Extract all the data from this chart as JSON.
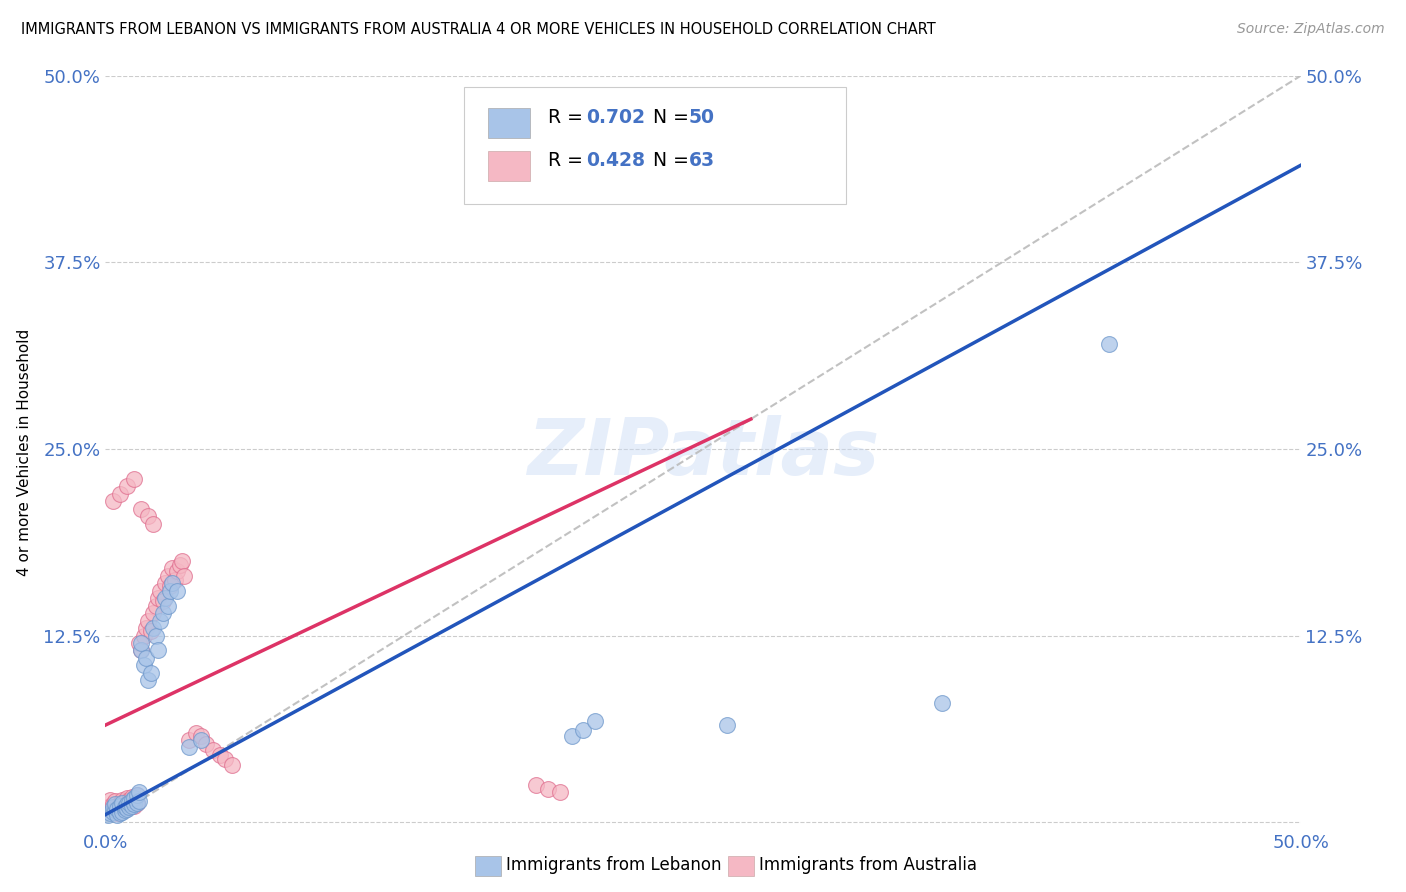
{
  "title": "IMMIGRANTS FROM LEBANON VS IMMIGRANTS FROM AUSTRALIA 4 OR MORE VEHICLES IN HOUSEHOLD CORRELATION CHART",
  "source": "Source: ZipAtlas.com",
  "ylabel": "4 or more Vehicles in Household",
  "xlim": [
    0.0,
    0.5
  ],
  "ylim": [
    -0.005,
    0.5
  ],
  "legend_blue_R": "0.702",
  "legend_blue_N": "50",
  "legend_pink_R": "0.428",
  "legend_pink_N": "63",
  "blue_color": "#a8c4e8",
  "pink_color": "#f5b8c4",
  "blue_edge_color": "#7099cc",
  "pink_edge_color": "#e07090",
  "blue_line_color": "#2255bb",
  "pink_line_color": "#dd3366",
  "diagonal_color": "#bbbbbb",
  "watermark": "ZIPatlas",
  "blue_line_x0": 0.0,
  "blue_line_y0": 0.005,
  "blue_line_x1": 0.5,
  "blue_line_y1": 0.44,
  "pink_line_x0": 0.0,
  "pink_line_y0": 0.065,
  "pink_line_x1": 0.27,
  "pink_line_y1": 0.27,
  "blue_scatter_x": [
    0.001,
    0.002,
    0.003,
    0.003,
    0.004,
    0.004,
    0.005,
    0.005,
    0.006,
    0.006,
    0.007,
    0.007,
    0.008,
    0.008,
    0.009,
    0.009,
    0.01,
    0.01,
    0.011,
    0.011,
    0.012,
    0.012,
    0.013,
    0.013,
    0.014,
    0.014,
    0.015,
    0.015,
    0.016,
    0.017,
    0.018,
    0.019,
    0.02,
    0.021,
    0.022,
    0.023,
    0.024,
    0.025,
    0.026,
    0.027,
    0.028,
    0.03,
    0.035,
    0.04,
    0.195,
    0.2,
    0.205,
    0.26,
    0.35,
    0.42
  ],
  "blue_scatter_y": [
    0.005,
    0.006,
    0.007,
    0.01,
    0.008,
    0.012,
    0.005,
    0.009,
    0.006,
    0.011,
    0.007,
    0.013,
    0.008,
    0.01,
    0.009,
    0.012,
    0.01,
    0.013,
    0.011,
    0.015,
    0.012,
    0.016,
    0.013,
    0.018,
    0.014,
    0.02,
    0.115,
    0.12,
    0.105,
    0.11,
    0.095,
    0.1,
    0.13,
    0.125,
    0.115,
    0.135,
    0.14,
    0.15,
    0.145,
    0.155,
    0.16,
    0.155,
    0.05,
    0.055,
    0.058,
    0.062,
    0.068,
    0.065,
    0.08,
    0.32
  ],
  "pink_scatter_x": [
    0.001,
    0.002,
    0.002,
    0.003,
    0.003,
    0.004,
    0.004,
    0.005,
    0.005,
    0.006,
    0.006,
    0.007,
    0.007,
    0.008,
    0.008,
    0.009,
    0.009,
    0.01,
    0.01,
    0.011,
    0.011,
    0.012,
    0.012,
    0.013,
    0.013,
    0.014,
    0.015,
    0.016,
    0.017,
    0.018,
    0.019,
    0.02,
    0.021,
    0.022,
    0.023,
    0.024,
    0.025,
    0.026,
    0.027,
    0.028,
    0.029,
    0.03,
    0.031,
    0.032,
    0.033,
    0.035,
    0.038,
    0.04,
    0.042,
    0.045,
    0.048,
    0.05,
    0.053,
    0.18,
    0.185,
    0.19,
    0.003,
    0.006,
    0.009,
    0.012,
    0.015,
    0.018,
    0.02
  ],
  "pink_scatter_y": [
    0.01,
    0.008,
    0.015,
    0.007,
    0.012,
    0.009,
    0.014,
    0.006,
    0.011,
    0.008,
    0.013,
    0.01,
    0.015,
    0.009,
    0.014,
    0.011,
    0.016,
    0.01,
    0.015,
    0.012,
    0.017,
    0.011,
    0.016,
    0.013,
    0.018,
    0.12,
    0.115,
    0.125,
    0.13,
    0.135,
    0.128,
    0.14,
    0.145,
    0.15,
    0.155,
    0.148,
    0.16,
    0.165,
    0.158,
    0.17,
    0.162,
    0.168,
    0.172,
    0.175,
    0.165,
    0.055,
    0.06,
    0.058,
    0.052,
    0.048,
    0.045,
    0.042,
    0.038,
    0.025,
    0.022,
    0.02,
    0.215,
    0.22,
    0.225,
    0.23,
    0.21,
    0.205,
    0.2
  ]
}
